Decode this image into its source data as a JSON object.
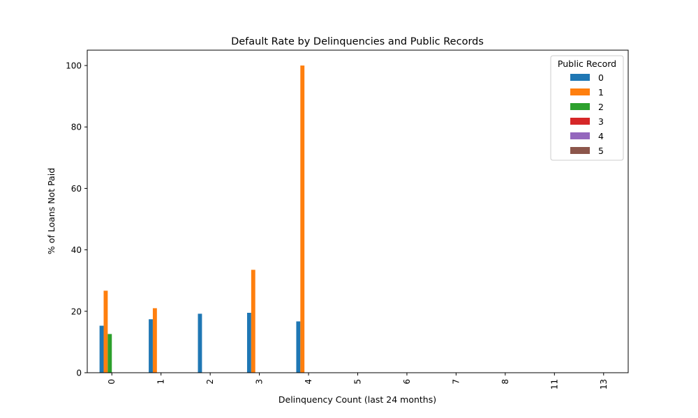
{
  "chart_data": {
    "type": "bar",
    "title": "Default Rate by Delinquencies and Public Records",
    "xlabel": "Delinquency Count (last 24 months)",
    "ylabel": "% of Loans Not Paid",
    "categories": [
      "0",
      "1",
      "2",
      "3",
      "4",
      "5",
      "6",
      "7",
      "8",
      "11",
      "13"
    ],
    "ylim": [
      0,
      105
    ],
    "yticks": [
      0,
      20,
      40,
      60,
      80,
      100
    ],
    "grid": false,
    "x_tick_rotation": "vertical",
    "legend": {
      "title": "Public Record",
      "placement": "top-right"
    },
    "series": [
      {
        "name": "0",
        "color": "#1f77b4",
        "values": [
          15.3,
          17.4,
          19.2,
          19.5,
          16.7,
          0,
          0,
          0,
          0,
          0,
          0
        ]
      },
      {
        "name": "1",
        "color": "#ff7f0e",
        "values": [
          26.7,
          21.0,
          0,
          33.5,
          100,
          0,
          0,
          0,
          0,
          0,
          0
        ]
      },
      {
        "name": "2",
        "color": "#2ca02c",
        "values": [
          12.6,
          0,
          0,
          0,
          0,
          0,
          0,
          0,
          0,
          0,
          0
        ]
      },
      {
        "name": "3",
        "color": "#d62728",
        "values": [
          0,
          0,
          0,
          0,
          0,
          0,
          0,
          0,
          0,
          0,
          0
        ]
      },
      {
        "name": "4",
        "color": "#9467bd",
        "values": [
          0,
          0,
          0,
          0,
          0,
          0,
          0,
          0,
          0,
          0,
          0
        ]
      },
      {
        "name": "5",
        "color": "#8c564b",
        "values": [
          0,
          0,
          0,
          0,
          0,
          0,
          0,
          0,
          0,
          0,
          0
        ]
      }
    ]
  }
}
